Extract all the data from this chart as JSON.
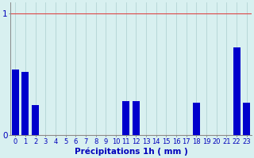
{
  "hours": [
    0,
    1,
    2,
    3,
    4,
    5,
    6,
    7,
    8,
    9,
    10,
    11,
    12,
    13,
    14,
    15,
    16,
    17,
    18,
    19,
    20,
    21,
    22,
    23
  ],
  "values": [
    0.54,
    0.52,
    0.25,
    0,
    0,
    0,
    0,
    0,
    0,
    0,
    0,
    0.28,
    0.28,
    0,
    0,
    0,
    0,
    0,
    0.27,
    0,
    0,
    0,
    0.72,
    0.27
  ],
  "bar_color": "#0000cc",
  "background_color": "#d8f0f0",
  "vgrid_color": "#b8d8d8",
  "hgrid_color": "#dd4444",
  "tick_label_color": "#0000bb",
  "xlabel": "Précipitations 1h ( mm )",
  "ylim": [
    0,
    1.09
  ],
  "yticks": [
    0,
    1
  ],
  "xlabel_fontsize": 7.5,
  "tick_fontsize": 6.0,
  "y_tick_fontsize": 7.5
}
